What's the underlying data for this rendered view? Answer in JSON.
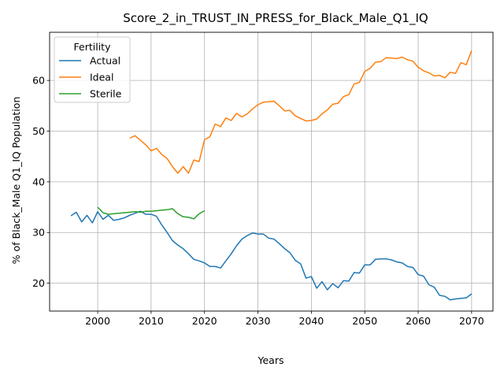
{
  "chart_data": {
    "type": "line",
    "title": "Score_2_in_TRUST_IN_PRESS_for_Black_Male_Q1_IQ",
    "xlabel": "Years",
    "ylabel": "% of Black_Male Q1_IQ Population",
    "xlim": [
      1991,
      2074
    ],
    "ylim": [
      14.5,
      69.5
    ],
    "xticks": [
      2000,
      2010,
      2020,
      2030,
      2040,
      2050,
      2060,
      2070
    ],
    "yticks": [
      20,
      30,
      40,
      50,
      60
    ],
    "grid": true,
    "legend": {
      "title": "Fertility",
      "placement": "top-left"
    },
    "series": [
      {
        "name": "Actual",
        "color": "#1f77b4",
        "x": [
          1995,
          1996,
          1997,
          1998,
          1999,
          2000,
          2001,
          2002,
          2003,
          2004,
          2005,
          2006,
          2007,
          2008,
          2009,
          2010,
          2011,
          2012,
          2013,
          2014,
          2015,
          2016,
          2017,
          2018,
          2019,
          2020,
          2021,
          2022,
          2023,
          2024,
          2025,
          2026,
          2027,
          2028,
          2029,
          2030,
          2031,
          2032,
          2033,
          2034,
          2035,
          2036,
          2037,
          2038,
          2039,
          2040,
          2041,
          2042,
          2043,
          2044,
          2045,
          2046,
          2047,
          2048,
          2049,
          2050,
          2051,
          2052,
          2053,
          2054,
          2055,
          2056,
          2057,
          2058,
          2059,
          2060,
          2061,
          2062,
          2063,
          2064,
          2065,
          2066,
          2067,
          2068,
          2069,
          2070
        ],
        "values": [
          33.3,
          34.0,
          32.1,
          33.4,
          31.9,
          34.1,
          32.6,
          33.4,
          32.4,
          32.6,
          32.9,
          33.4,
          33.8,
          34.2,
          33.6,
          33.6,
          33.2,
          31.5,
          30.0,
          28.4,
          27.5,
          26.8,
          25.8,
          24.7,
          24.4,
          24.0,
          23.3,
          23.3,
          23.0,
          24.4,
          25.8,
          27.4,
          28.7,
          29.4,
          29.9,
          29.7,
          29.7,
          28.9,
          28.7,
          27.8,
          26.8,
          26.0,
          24.5,
          23.8,
          21.0,
          21.3,
          19.0,
          20.3,
          18.7,
          19.9,
          19.1,
          20.5,
          20.4,
          22.1,
          22.0,
          23.6,
          23.6,
          24.7,
          24.8,
          24.8,
          24.6,
          24.2,
          24.0,
          23.3,
          23.1,
          21.7,
          21.4,
          19.7,
          19.2,
          17.6,
          17.4,
          16.7,
          16.9,
          17.0,
          17.1,
          17.9
        ]
      },
      {
        "name": "Ideal",
        "color": "#ff7f0e",
        "x": [
          2006,
          2007,
          2008,
          2009,
          2010,
          2011,
          2012,
          2013,
          2014,
          2015,
          2016,
          2017,
          2018,
          2019,
          2020,
          2021,
          2022,
          2023,
          2024,
          2025,
          2026,
          2027,
          2028,
          2029,
          2030,
          2031,
          2032,
          2033,
          2034,
          2035,
          2036,
          2037,
          2038,
          2039,
          2040,
          2041,
          2042,
          2043,
          2044,
          2045,
          2046,
          2047,
          2048,
          2049,
          2050,
          2051,
          2052,
          2053,
          2054,
          2055,
          2056,
          2057,
          2058,
          2059,
          2060,
          2061,
          2062,
          2063,
          2064,
          2065,
          2066,
          2067,
          2068,
          2069,
          2070
        ],
        "values": [
          48.6,
          49.1,
          48.2,
          47.3,
          46.1,
          46.6,
          45.4,
          44.6,
          43.0,
          41.7,
          43.0,
          41.7,
          44.3,
          44.0,
          48.3,
          48.9,
          51.4,
          50.9,
          52.6,
          52.1,
          53.5,
          52.8,
          53.4,
          54.4,
          55.2,
          55.7,
          55.8,
          55.9,
          55.0,
          54.0,
          54.1,
          53.0,
          52.5,
          52.0,
          52.1,
          52.4,
          53.4,
          54.2,
          55.3,
          55.5,
          56.8,
          57.2,
          59.3,
          59.6,
          61.8,
          62.4,
          63.6,
          63.7,
          64.5,
          64.4,
          64.3,
          64.6,
          64.1,
          63.8,
          62.6,
          61.9,
          61.5,
          60.9,
          61.0,
          60.5,
          61.6,
          61.4,
          63.5,
          63.1,
          65.9
        ]
      },
      {
        "name": "Sterile",
        "color": "#2ca02c",
        "x": [
          2000,
          2001,
          2002,
          2003,
          2004,
          2005,
          2006,
          2007,
          2008,
          2009,
          2010,
          2011,
          2012,
          2013,
          2014,
          2015,
          2016,
          2017,
          2018,
          2019,
          2020
        ],
        "values": [
          35.0,
          33.9,
          33.6,
          33.7,
          33.8,
          33.9,
          34.0,
          34.1,
          34.0,
          34.2,
          34.2,
          34.3,
          34.4,
          34.5,
          34.7,
          33.7,
          33.1,
          33.0,
          32.7,
          33.7,
          34.3
        ]
      }
    ]
  }
}
